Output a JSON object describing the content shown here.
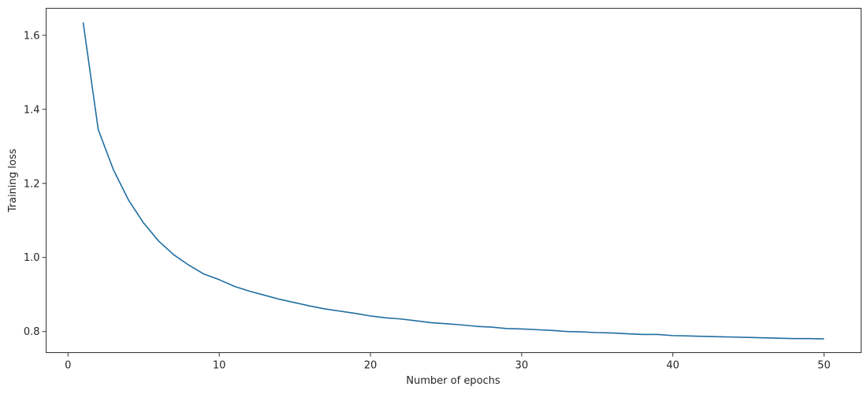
{
  "chart_data": {
    "type": "line",
    "title": "",
    "xlabel": "Number of epochs",
    "ylabel": "Training loss",
    "xlim": [
      -1.45,
      52.45
    ],
    "ylim": [
      0.743,
      1.673
    ],
    "xticks": [
      0,
      10,
      20,
      30,
      40,
      50
    ],
    "xtick_labels": [
      "0",
      "10",
      "20",
      "30",
      "40",
      "50"
    ],
    "yticks": [
      0.8,
      1.0,
      1.2,
      1.4,
      1.6
    ],
    "ytick_labels": [
      "0.8",
      "1.0",
      "1.2",
      "1.4",
      "1.6"
    ],
    "grid": false,
    "legend": "none",
    "series": [
      {
        "color": "#1f6ea0",
        "x": [
          1,
          2,
          3,
          4,
          5,
          6,
          7,
          8,
          9,
          10,
          11,
          12,
          13,
          14,
          15,
          16,
          17,
          18,
          19,
          20,
          21,
          22,
          23,
          24,
          25,
          26,
          27,
          28,
          29,
          30,
          31,
          32,
          33,
          34,
          35,
          36,
          37,
          38,
          39,
          40,
          41,
          42,
          43,
          44,
          45,
          46,
          47,
          48,
          49,
          50
        ],
        "values": [
          1.635,
          1.345,
          1.237,
          1.155,
          1.093,
          1.044,
          1.007,
          0.979,
          0.955,
          0.94,
          0.922,
          0.909,
          0.898,
          0.887,
          0.878,
          0.869,
          0.861,
          0.855,
          0.849,
          0.842,
          0.837,
          0.834,
          0.829,
          0.824,
          0.821,
          0.818,
          0.814,
          0.812,
          0.808,
          0.807,
          0.805,
          0.803,
          0.8,
          0.799,
          0.797,
          0.796,
          0.794,
          0.792,
          0.792,
          0.789,
          0.788,
          0.787,
          0.786,
          0.785,
          0.784,
          0.783,
          0.782,
          0.781,
          0.781,
          0.78
        ]
      }
    ]
  }
}
